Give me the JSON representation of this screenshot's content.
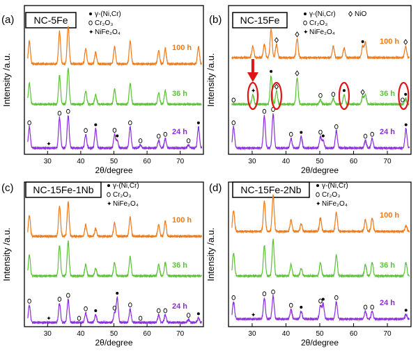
{
  "colors": {
    "h100": "#f07a1a",
    "h36": "#5bc236",
    "h24": "#8b2ce0",
    "highlight": "#e01515"
  },
  "chart_data": [
    {
      "type": "line",
      "panel": "(a)",
      "title": "NC-5Fe",
      "xlabel": "2θ/degree",
      "ylabel": "Intensity /a.u.",
      "xticks": [
        "30",
        "40",
        "50",
        "60",
        "70"
      ],
      "xlim": [
        23,
        77
      ],
      "legend": [
        {
          "symbol": "dot",
          "label": "γ-(Ni,Cr)"
        },
        {
          "symbol": "ring",
          "label": "Cr₂O₃"
        },
        {
          "symbol": "star",
          "label": "NiFe₂O₄"
        }
      ],
      "series": [
        {
          "name": "100 h",
          "color_key": "h100",
          "peaks": [
            [
              24.5,
              0.6
            ],
            [
              33.6,
              0.85
            ],
            [
              36.2,
              1.0
            ],
            [
              41.5,
              0.4
            ],
            [
              44.5,
              0.3
            ],
            [
              50.2,
              0.45
            ],
            [
              54.9,
              0.6
            ],
            [
              63.5,
              0.35
            ],
            [
              65.5,
              0.4
            ],
            [
              75.5,
              0.45
            ]
          ]
        },
        {
          "name": "36 h",
          "color_key": "h36",
          "peaks": [
            [
              24.5,
              0.55
            ],
            [
              33.6,
              0.75
            ],
            [
              36.2,
              0.95
            ],
            [
              41.5,
              0.35
            ],
            [
              44.5,
              0.25
            ],
            [
              50.2,
              0.4
            ],
            [
              54.9,
              0.55
            ],
            [
              63.5,
              0.3
            ],
            [
              65.5,
              0.35
            ]
          ]
        },
        {
          "name": "24 h",
          "color_key": "h24",
          "peaks": [
            [
              24.5,
              0.55
            ],
            [
              33.6,
              0.8
            ],
            [
              36.2,
              0.85
            ],
            [
              41.5,
              0.35
            ],
            [
              44.5,
              0.5
            ],
            [
              50.2,
              0.35
            ],
            [
              51.0,
              0.2
            ],
            [
              54.9,
              0.55
            ],
            [
              58.0,
              0.08
            ],
            [
              63.5,
              0.2
            ],
            [
              65.5,
              0.25
            ],
            [
              72.5,
              0.08
            ],
            [
              75.5,
              0.55
            ]
          ]
        }
      ],
      "markers": [
        {
          "series": "24 h",
          "two_theta": 24.5,
          "symbol": "ring"
        },
        {
          "series": "24 h",
          "two_theta": 30.2,
          "symbol": "star"
        },
        {
          "series": "24 h",
          "two_theta": 33.6,
          "symbol": "ring"
        },
        {
          "series": "24 h",
          "two_theta": 36.2,
          "symbol": "ring"
        },
        {
          "series": "24 h",
          "two_theta": 41.5,
          "symbol": "ring"
        },
        {
          "series": "24 h",
          "two_theta": 44.5,
          "symbol": "dot"
        },
        {
          "series": "24 h",
          "two_theta": 50.2,
          "symbol": "ring"
        },
        {
          "series": "24 h",
          "two_theta": 51.0,
          "symbol": "dot"
        },
        {
          "series": "24 h",
          "two_theta": 54.9,
          "symbol": "ring"
        },
        {
          "series": "24 h",
          "two_theta": 58.0,
          "symbol": "ring"
        },
        {
          "series": "24 h",
          "two_theta": 63.5,
          "symbol": "ring"
        },
        {
          "series": "24 h",
          "two_theta": 65.5,
          "symbol": "ring"
        },
        {
          "series": "24 h",
          "two_theta": 72.5,
          "symbol": "ring"
        },
        {
          "series": "24 h",
          "two_theta": 75.5,
          "symbol": "dot"
        }
      ],
      "circles": [],
      "arrow": null
    },
    {
      "type": "line",
      "panel": "(b)",
      "title": "NC-15Fe",
      "xlabel": "2θ/degree",
      "ylabel": "Intensity /a.u.",
      "xticks": [
        "30",
        "40",
        "50",
        "60",
        "70"
      ],
      "xlim": [
        23,
        77
      ],
      "legend": [
        {
          "symbol": "dot",
          "label": "γ-(Ni,Cr)"
        },
        {
          "symbol": "diamond",
          "label": "NiO"
        },
        {
          "symbol": "ring",
          "label": "Cr₂O₃"
        },
        {
          "symbol": "star",
          "label": "NiFe₂O₄"
        }
      ],
      "series": [
        {
          "name": "100 h",
          "color_key": "h100",
          "peaks": [
            [
              30.2,
              0.3
            ],
            [
              33.6,
              0.35
            ],
            [
              35.6,
              0.75
            ],
            [
              37.2,
              0.35
            ],
            [
              43.3,
              0.5
            ],
            [
              54.0,
              0.3
            ],
            [
              57.2,
              0.25
            ],
            [
              62.7,
              0.3
            ],
            [
              63.5,
              0.4
            ],
            [
              75.4,
              0.3
            ]
          ]
        },
        {
          "name": "36 h",
          "color_key": "h36",
          "peaks": [
            [
              30.2,
              0.25
            ],
            [
              35.6,
              0.75
            ],
            [
              37.2,
              0.35
            ],
            [
              43.3,
              0.7
            ],
            [
              50.2,
              0.12
            ],
            [
              54.0,
              0.15
            ],
            [
              57.2,
              0.25
            ],
            [
              62.7,
              0.2
            ],
            [
              63.5,
              0.25
            ],
            [
              75.4,
              0.15
            ]
          ]
        },
        {
          "name": "24 h",
          "color_key": "h24",
          "peaks": [
            [
              24.5,
              0.55
            ],
            [
              33.6,
              0.85
            ],
            [
              36.2,
              0.9
            ],
            [
              41.5,
              0.25
            ],
            [
              44.5,
              0.3
            ],
            [
              50.2,
              0.3
            ],
            [
              51.0,
              0.2
            ],
            [
              54.9,
              0.45
            ],
            [
              63.5,
              0.2
            ],
            [
              65.5,
              0.25
            ],
            [
              75.5,
              0.5
            ]
          ]
        }
      ],
      "markers": [
        {
          "series": "100 h",
          "two_theta": 37.2,
          "symbol": "diamond"
        },
        {
          "series": "100 h",
          "two_theta": 43.3,
          "symbol": "diamond"
        },
        {
          "series": "100 h",
          "two_theta": 62.7,
          "symbol": "dot"
        },
        {
          "series": "100 h",
          "two_theta": 75.4,
          "symbol": "diamond"
        },
        {
          "series": "36 h",
          "two_theta": 24.5,
          "symbol": "ring"
        },
        {
          "series": "36 h",
          "two_theta": 30.2,
          "symbol": "star"
        },
        {
          "series": "36 h",
          "two_theta": 35.6,
          "symbol": "dot"
        },
        {
          "series": "36 h",
          "two_theta": 37.2,
          "symbol": "diamond"
        },
        {
          "series": "36 h",
          "two_theta": 43.3,
          "symbol": "diamond"
        },
        {
          "series": "36 h",
          "two_theta": 50.2,
          "symbol": "ring"
        },
        {
          "series": "36 h",
          "two_theta": 54.0,
          "symbol": "ring"
        },
        {
          "series": "36 h",
          "two_theta": 57.2,
          "symbol": "dot"
        },
        {
          "series": "36 h",
          "two_theta": 62.7,
          "symbol": "diamond"
        },
        {
          "series": "36 h",
          "two_theta": 74.5,
          "symbol": "ring"
        },
        {
          "series": "36 h",
          "two_theta": 75.4,
          "symbol": "dot"
        },
        {
          "series": "24 h",
          "two_theta": 24.5,
          "symbol": "ring"
        },
        {
          "series": "24 h",
          "two_theta": 33.6,
          "symbol": "ring"
        },
        {
          "series": "24 h",
          "two_theta": 36.2,
          "symbol": "ring"
        },
        {
          "series": "24 h",
          "two_theta": 41.5,
          "symbol": "ring"
        },
        {
          "series": "24 h",
          "two_theta": 44.5,
          "symbol": "dot"
        },
        {
          "series": "24 h",
          "two_theta": 50.2,
          "symbol": "ring"
        },
        {
          "series": "24 h",
          "two_theta": 51.0,
          "symbol": "dot"
        },
        {
          "series": "24 h",
          "two_theta": 54.9,
          "symbol": "ring"
        },
        {
          "series": "24 h",
          "two_theta": 63.5,
          "symbol": "ring"
        },
        {
          "series": "24 h",
          "two_theta": 65.5,
          "symbol": "ring"
        },
        {
          "series": "24 h",
          "two_theta": 75.5,
          "symbol": "dot"
        }
      ],
      "circles": [
        {
          "two_theta": 30.2
        },
        {
          "two_theta": 37.2
        },
        {
          "two_theta": 57.2
        },
        {
          "two_theta": 74.8
        }
      ],
      "arrow": {
        "two_theta": 30.2
      }
    },
    {
      "type": "line",
      "panel": "(c)",
      "title": "NC-15Fe-1Nb",
      "xlabel": "2θ/degree",
      "ylabel": "Intensity /a.u.",
      "xticks": [
        "30",
        "40",
        "50",
        "60",
        "70"
      ],
      "xlim": [
        23,
        77
      ],
      "legend": [
        {
          "symbol": "dot",
          "label": "γ-(Ni,Cr)"
        },
        {
          "symbol": "ring",
          "label": "Cr₂O₃"
        },
        {
          "symbol": "star",
          "label": "NiFe₂O₄"
        }
      ],
      "series": [
        {
          "name": "100 h",
          "color_key": "h100",
          "peaks": [
            [
              24.5,
              0.55
            ],
            [
              33.6,
              0.8
            ],
            [
              36.2,
              0.9
            ],
            [
              41.5,
              0.3
            ],
            [
              44.5,
              0.2
            ],
            [
              50.2,
              0.35
            ],
            [
              54.9,
              0.5
            ],
            [
              63.5,
              0.3
            ],
            [
              65.5,
              0.4
            ]
          ]
        },
        {
          "name": "36 h",
          "color_key": "h36",
          "peaks": [
            [
              24.5,
              0.55
            ],
            [
              33.6,
              0.8
            ],
            [
              36.2,
              0.9
            ],
            [
              41.5,
              0.3
            ],
            [
              44.5,
              0.2
            ],
            [
              50.2,
              0.35
            ],
            [
              54.9,
              0.5
            ],
            [
              63.5,
              0.3
            ],
            [
              65.5,
              0.35
            ]
          ]
        },
        {
          "name": "24 h",
          "color_key": "h24",
          "peaks": [
            [
              24.5,
              0.45
            ],
            [
              33.6,
              0.5
            ],
            [
              36.2,
              0.6
            ],
            [
              41.5,
              0.25
            ],
            [
              44.5,
              0.2
            ],
            [
              50.2,
              0.25
            ],
            [
              51.0,
              0.65
            ],
            [
              54.9,
              0.35
            ],
            [
              63.5,
              0.2
            ],
            [
              65.5,
              0.2
            ],
            [
              72.5,
              0.08
            ],
            [
              75.5,
              0.12
            ]
          ]
        }
      ],
      "markers": [
        {
          "series": "24 h",
          "two_theta": 24.5,
          "symbol": "ring"
        },
        {
          "series": "24 h",
          "two_theta": 30.2,
          "symbol": "star"
        },
        {
          "series": "24 h",
          "two_theta": 33.6,
          "symbol": "ring"
        },
        {
          "series": "24 h",
          "two_theta": 36.2,
          "symbol": "ring"
        },
        {
          "series": "24 h",
          "two_theta": 39.5,
          "symbol": "ring"
        },
        {
          "series": "24 h",
          "two_theta": 41.5,
          "symbol": "ring"
        },
        {
          "series": "24 h",
          "two_theta": 44.5,
          "symbol": "dot"
        },
        {
          "series": "24 h",
          "two_theta": 50.2,
          "symbol": "ring"
        },
        {
          "series": "24 h",
          "two_theta": 51.0,
          "symbol": "dot"
        },
        {
          "series": "24 h",
          "two_theta": 54.9,
          "symbol": "ring"
        },
        {
          "series": "24 h",
          "two_theta": 58.0,
          "symbol": "ring"
        },
        {
          "series": "24 h",
          "two_theta": 63.5,
          "symbol": "ring"
        },
        {
          "series": "24 h",
          "two_theta": 65.5,
          "symbol": "ring"
        },
        {
          "series": "24 h",
          "two_theta": 72.5,
          "symbol": "ring"
        },
        {
          "series": "24 h",
          "two_theta": 75.5,
          "symbol": "dot"
        }
      ],
      "circles": [],
      "arrow": null
    },
    {
      "type": "line",
      "panel": "(d)",
      "title": "NC-15Fe-2Nb",
      "xlabel": "2θ/degree",
      "ylabel": "Intensity /a.u.",
      "xticks": [
        "30",
        "40",
        "50",
        "60",
        "70"
      ],
      "xlim": [
        23,
        77
      ],
      "legend": [
        {
          "symbol": "dot",
          "label": "γ-(Ni,Cr)"
        },
        {
          "symbol": "ring",
          "label": "Cr₂O₃"
        },
        {
          "symbol": "star",
          "label": "NiFe₂O₄"
        }
      ],
      "series": [
        {
          "name": "100 h",
          "color_key": "h100",
          "peaks": [
            [
              24.5,
              0.55
            ],
            [
              33.6,
              0.8
            ],
            [
              36.2,
              0.95
            ],
            [
              41.5,
              0.3
            ],
            [
              44.5,
              0.2
            ],
            [
              50.2,
              0.35
            ],
            [
              54.9,
              0.5
            ],
            [
              63.5,
              0.3
            ],
            [
              65.5,
              0.35
            ],
            [
              75.5,
              0.15
            ]
          ]
        },
        {
          "name": "36 h",
          "color_key": "h36",
          "peaks": [
            [
              24.5,
              0.6
            ],
            [
              33.6,
              0.8
            ],
            [
              36.2,
              0.95
            ],
            [
              41.5,
              0.3
            ],
            [
              44.5,
              0.2
            ],
            [
              50.2,
              0.35
            ],
            [
              54.9,
              0.55
            ],
            [
              63.5,
              0.3
            ],
            [
              65.5,
              0.35
            ],
            [
              75.5,
              0.35
            ]
          ]
        },
        {
          "name": "24 h",
          "color_key": "h24",
          "peaks": [
            [
              24.5,
              0.45
            ],
            [
              33.6,
              0.55
            ],
            [
              36.2,
              0.6
            ],
            [
              41.5,
              0.25
            ],
            [
              44.5,
              0.2
            ],
            [
              50.2,
              0.35
            ],
            [
              51.0,
              0.4
            ],
            [
              54.9,
              0.45
            ],
            [
              63.5,
              0.2
            ],
            [
              65.5,
              0.2
            ],
            [
              75.5,
              0.12
            ]
          ]
        }
      ],
      "markers": [
        {
          "series": "24 h",
          "two_theta": 24.5,
          "symbol": "ring"
        },
        {
          "series": "24 h",
          "two_theta": 30.2,
          "symbol": "star"
        },
        {
          "series": "24 h",
          "two_theta": 33.6,
          "symbol": "ring"
        },
        {
          "series": "24 h",
          "two_theta": 36.2,
          "symbol": "ring"
        },
        {
          "series": "24 h",
          "two_theta": 41.5,
          "symbol": "ring"
        },
        {
          "series": "24 h",
          "two_theta": 44.5,
          "symbol": "dot"
        },
        {
          "series": "24 h",
          "two_theta": 50.2,
          "symbol": "ring"
        },
        {
          "series": "24 h",
          "two_theta": 51.0,
          "symbol": "dot"
        },
        {
          "series": "24 h",
          "two_theta": 54.9,
          "symbol": "ring"
        },
        {
          "series": "24 h",
          "two_theta": 63.5,
          "symbol": "ring"
        },
        {
          "series": "24 h",
          "two_theta": 65.5,
          "symbol": "ring"
        },
        {
          "series": "24 h",
          "two_theta": 75.5,
          "symbol": "dot"
        }
      ],
      "circles": [],
      "arrow": null
    }
  ]
}
